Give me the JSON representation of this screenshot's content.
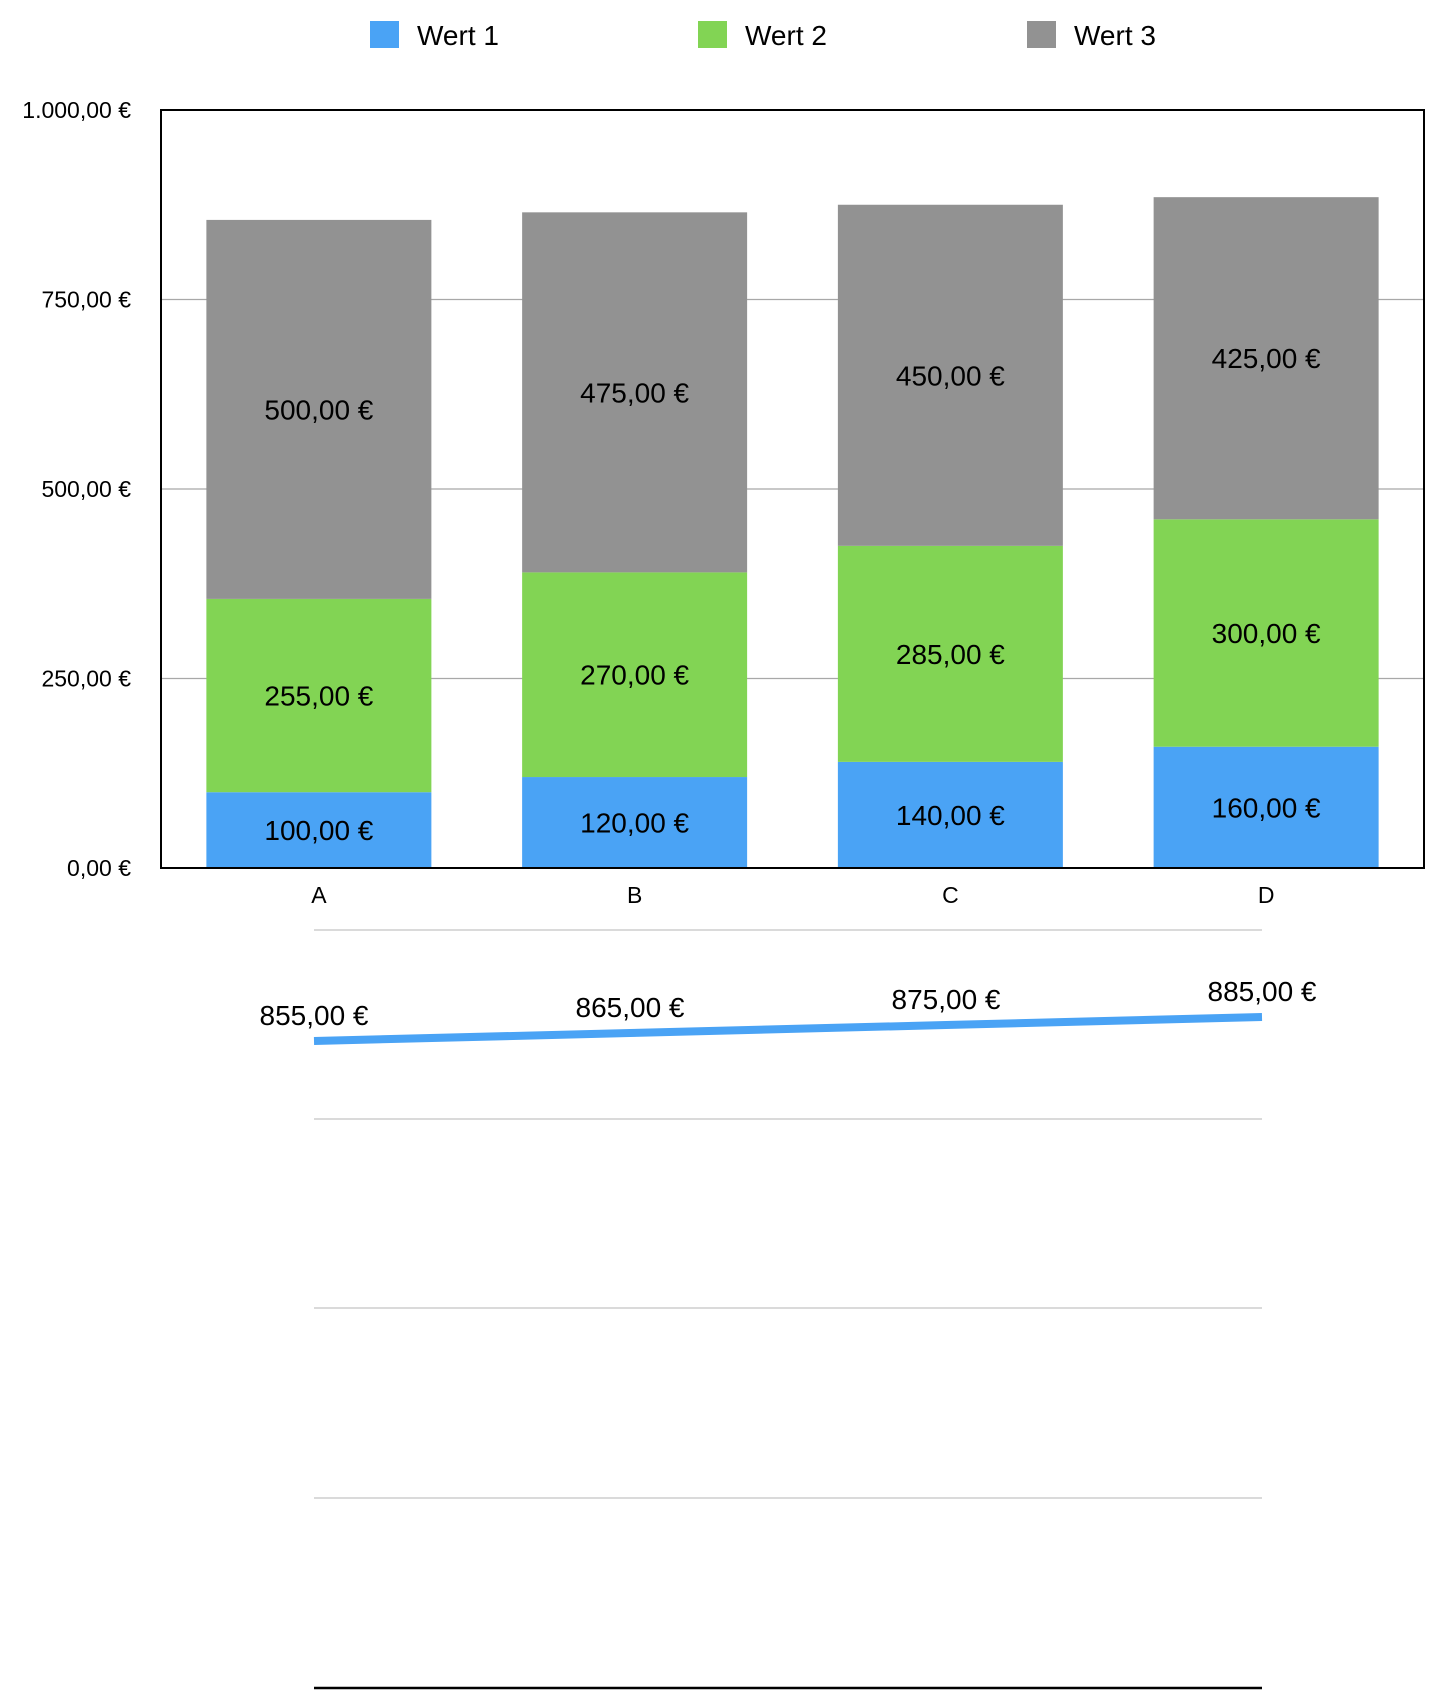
{
  "chart_data": [
    {
      "type": "bar",
      "stacked": true,
      "categories": [
        "A",
        "B",
        "C",
        "D"
      ],
      "series": [
        {
          "name": "Wert 1",
          "color": "#4aa3f5",
          "values": [
            100,
            120,
            140,
            160
          ],
          "labels": [
            "100,00 €",
            "120,00 €",
            "140,00 €",
            "160,00 €"
          ]
        },
        {
          "name": "Wert 2",
          "color": "#82d454",
          "values": [
            255,
            270,
            285,
            300
          ],
          "labels": [
            "255,00 €",
            "270,00 €",
            "285,00 €",
            "300,00 €"
          ]
        },
        {
          "name": "Wert 3",
          "color": "#929292",
          "values": [
            500,
            475,
            450,
            425
          ],
          "labels": [
            "500,00 €",
            "475,00 €",
            "450,00 €",
            "425,00 €"
          ]
        }
      ],
      "ylim": [
        0,
        1000
      ],
      "yticks": [
        0,
        250,
        500,
        750,
        1000
      ],
      "ytick_labels": [
        "0,00 €",
        "250,00 €",
        "500,00 €",
        "750,00 €",
        "1.000,00 €"
      ],
      "grid": true,
      "legend_position": "top"
    },
    {
      "type": "line",
      "categories": [
        "A",
        "B",
        "C",
        "D"
      ],
      "series": [
        {
          "color": "#4aa3f5",
          "values": [
            855,
            865,
            875,
            885
          ],
          "labels": [
            "855,00 €",
            "865,00 €",
            "875,00 €",
            "885,00 €"
          ]
        }
      ],
      "grid": true
    }
  ]
}
